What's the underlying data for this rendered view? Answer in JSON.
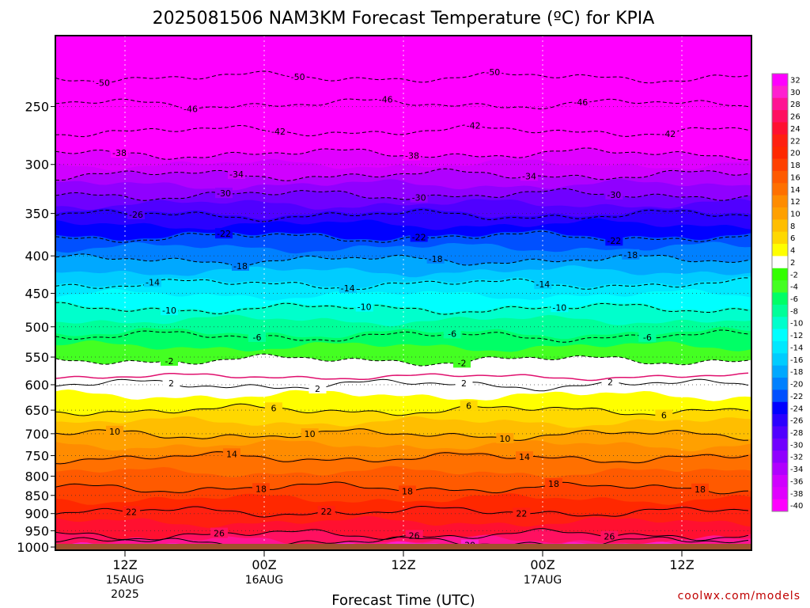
{
  "chart_data": {
    "type": "heatmap",
    "title": "2025081506 NAM3KM Forecast Temperature (ºC) for KPIA",
    "xlabel": "Forecast Time (UTC)",
    "credit": "coolwx.com/models",
    "y_scale": "log-pressure",
    "y_ticks": [
      250,
      300,
      350,
      400,
      450,
      500,
      550,
      600,
      650,
      700,
      750,
      800,
      850,
      900,
      950,
      1000
    ],
    "y_range_hpa": [
      200,
      1010
    ],
    "ground_level_hpa": 990,
    "x_ticks": [
      {
        "hour": 6,
        "label": "12Z",
        "date": "15AUG",
        "year": "2025"
      },
      {
        "hour": 18,
        "label": "00Z",
        "date": "16AUG",
        "year": ""
      },
      {
        "hour": 30,
        "label": "12Z",
        "date": "",
        "year": ""
      },
      {
        "hour": 42,
        "label": "00Z",
        "date": "17AUG",
        "year": ""
      },
      {
        "hour": 54,
        "label": "12Z",
        "date": "",
        "year": ""
      }
    ],
    "x_range_hours": [
      0,
      60
    ],
    "colorbar_levels": [
      32,
      30,
      28,
      26,
      24,
      22,
      20,
      18,
      16,
      14,
      12,
      10,
      8,
      6,
      4,
      2,
      -2,
      -4,
      -6,
      -8,
      -10,
      -12,
      -14,
      -16,
      -18,
      -20,
      -22,
      -24,
      -26,
      -28,
      -30,
      -32,
      -34,
      -36,
      -38,
      -40
    ],
    "colorbar_colors": [
      "#ff00ff",
      "#ff20d0",
      "#ff1493",
      "#ff1060",
      "#ff1030",
      "#ff2010",
      "#ff2800",
      "#ff4000",
      "#ff5a00",
      "#ff7000",
      "#ff8c00",
      "#ffa000",
      "#ffbe00",
      "#ffd800",
      "#ffff00",
      "#ffffff",
      "#33ff00",
      "#44ff22",
      "#00ff66",
      "#00ff99",
      "#00ffcc",
      "#00ffff",
      "#00e8ff",
      "#00ccff",
      "#00a8ff",
      "#0080ff",
      "#0050ff",
      "#0000ff",
      "#2a00ff",
      "#5000ff",
      "#7000ff",
      "#9000ff",
      "#b000ff",
      "#d000ff",
      "#e000ff",
      "#ff00ff"
    ],
    "temperature_profile": [
      {
        "p": 200,
        "t": -56
      },
      {
        "p": 230,
        "t": -50
      },
      {
        "p": 250,
        "t": -46
      },
      {
        "p": 270,
        "t": -42
      },
      {
        "p": 290,
        "t": -38
      },
      {
        "p": 310,
        "t": -34
      },
      {
        "p": 330,
        "t": -30
      },
      {
        "p": 350,
        "t": -26
      },
      {
        "p": 375,
        "t": -22
      },
      {
        "p": 405,
        "t": -18
      },
      {
        "p": 435,
        "t": -14
      },
      {
        "p": 470,
        "t": -10
      },
      {
        "p": 510,
        "t": -6
      },
      {
        "p": 555,
        "t": -2
      },
      {
        "p": 592,
        "t": 2
      },
      {
        "p": 650,
        "t": 6
      },
      {
        "p": 700,
        "t": 10
      },
      {
        "p": 752,
        "t": 14
      },
      {
        "p": 830,
        "t": 18
      },
      {
        "p": 890,
        "t": 22
      },
      {
        "p": 960,
        "t": 26
      },
      {
        "p": 1000,
        "t": 30
      }
    ],
    "contours": [
      {
        "value": -50,
        "p": 228,
        "dashed": true,
        "labels": [
          "-50",
          "-50",
          "-50"
        ]
      },
      {
        "value": -46,
        "p": 248,
        "dashed": true,
        "labels": [
          "-46",
          "-46",
          "-46"
        ]
      },
      {
        "value": -42,
        "p": 270,
        "dashed": true,
        "labels": [
          "-42",
          "-42",
          "-42"
        ]
      },
      {
        "value": -38,
        "p": 290,
        "dashed": true,
        "labels": [
          "-38",
          "-38"
        ]
      },
      {
        "value": -34,
        "p": 310,
        "dashed": true,
        "labels": [
          "-34",
          "-34"
        ]
      },
      {
        "value": -30,
        "p": 330,
        "dashed": true,
        "labels": [
          "-30",
          "-30",
          "-30"
        ]
      },
      {
        "value": -26,
        "p": 352,
        "dashed": true,
        "labels": [
          "-26"
        ]
      },
      {
        "value": -22,
        "p": 377,
        "dashed": true,
        "labels": [
          "-22",
          "-22",
          "-22"
        ]
      },
      {
        "value": -18,
        "p": 405,
        "dashed": true,
        "labels": [
          "-18",
          "-18",
          "-18"
        ]
      },
      {
        "value": -14,
        "p": 437,
        "dashed": true,
        "labels": [
          "-14",
          "-14",
          "-14"
        ]
      },
      {
        "value": -10,
        "p": 472,
        "dashed": true,
        "labels": [
          "-10",
          "-10",
          "-10"
        ]
      },
      {
        "value": -6,
        "p": 515,
        "dashed": true,
        "labels": [
          "-6",
          "-6",
          "-6"
        ]
      },
      {
        "value": -2,
        "p": 555,
        "dashed": true,
        "labels": [
          "-2",
          "-2"
        ]
      },
      {
        "value": 2,
        "p": 600,
        "dashed": false,
        "labels": [
          "2",
          "2",
          "2",
          "2"
        ]
      },
      {
        "value": 6,
        "p": 650,
        "dashed": false,
        "labels": [
          "6",
          "6",
          "6"
        ]
      },
      {
        "value": 10,
        "p": 702,
        "dashed": false,
        "labels": [
          "10",
          "10",
          "10"
        ]
      },
      {
        "value": 14,
        "p": 755,
        "dashed": false,
        "labels": [
          "14",
          "14"
        ]
      },
      {
        "value": 18,
        "p": 830,
        "dashed": false,
        "labels": [
          "18",
          "18",
          "18",
          "18"
        ]
      },
      {
        "value": 22,
        "p": 895,
        "dashed": false,
        "labels": [
          "22",
          "22",
          "22"
        ]
      },
      {
        "value": 26,
        "p": 962,
        "dashed": false,
        "labels": [
          "26",
          "26",
          "26"
        ]
      },
      {
        "value": 30,
        "p": 985,
        "dashed": false,
        "labels": [
          "30"
        ]
      }
    ],
    "freezing_line": {
      "value": 0,
      "p": 585,
      "color": "#e0106e"
    }
  }
}
